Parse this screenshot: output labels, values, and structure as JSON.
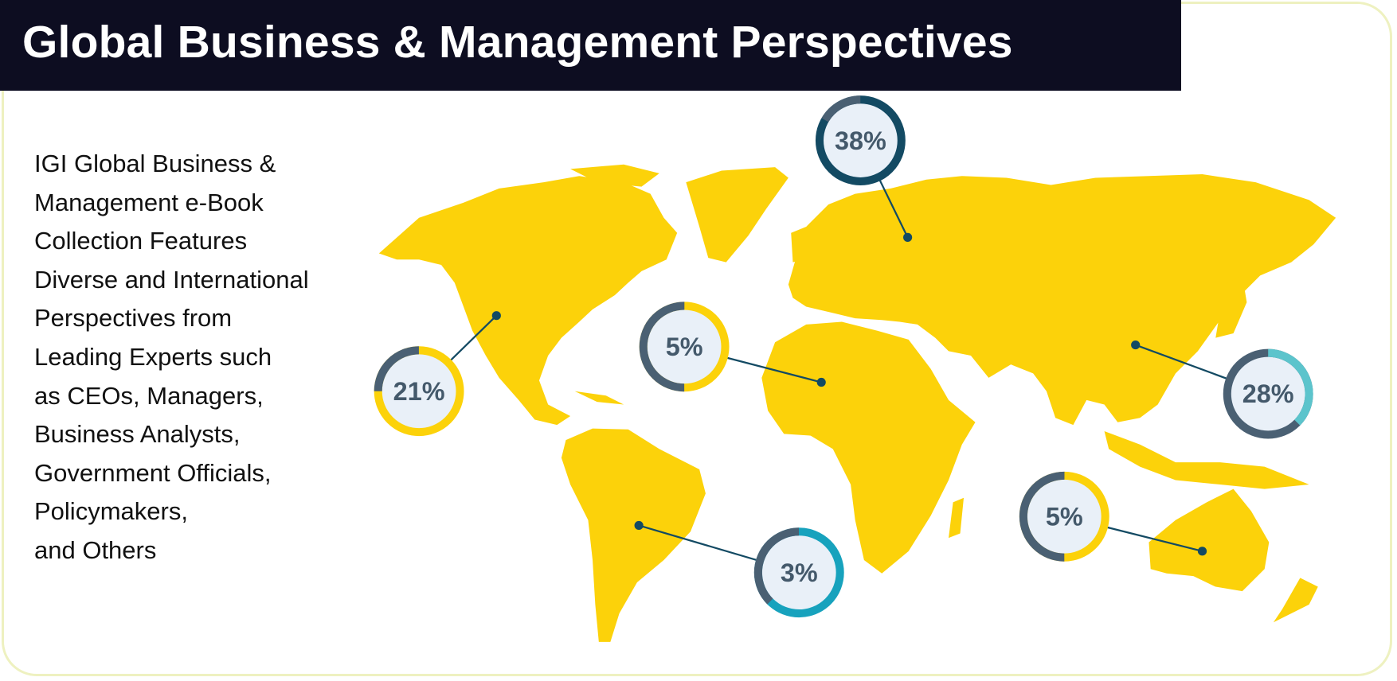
{
  "title": "Global Business & Management Perspectives",
  "description_lines": [
    "IGI Global Business &",
    "Management e-Book",
    "Collection Features",
    "Diverse and International",
    "Perspectives from",
    "Leading Experts such",
    "as CEOs, Managers,",
    "Business Analysts,",
    "Government Officials,",
    "Policymakers,",
    "and Others"
  ],
  "regions": [
    {
      "region": "Europe",
      "label": "38%",
      "value": 38
    },
    {
      "region": "North America",
      "label": "21%",
      "value": 21
    },
    {
      "region": "Africa",
      "label": "5%",
      "value": 5
    },
    {
      "region": "Asia",
      "label": "28%",
      "value": 28
    },
    {
      "region": "South America",
      "label": "3%",
      "value": 3
    },
    {
      "region": "Oceania",
      "label": "5%",
      "value": 5
    }
  ],
  "colors": {
    "map": "#fcd20a",
    "title_bg": "#0d0d21",
    "slate": "#4a6073",
    "dark_teal": "#134a63",
    "teal": "#17a2bd",
    "light_teal": "#5cc4cc",
    "ring_fill": "#e9f0f8"
  }
}
